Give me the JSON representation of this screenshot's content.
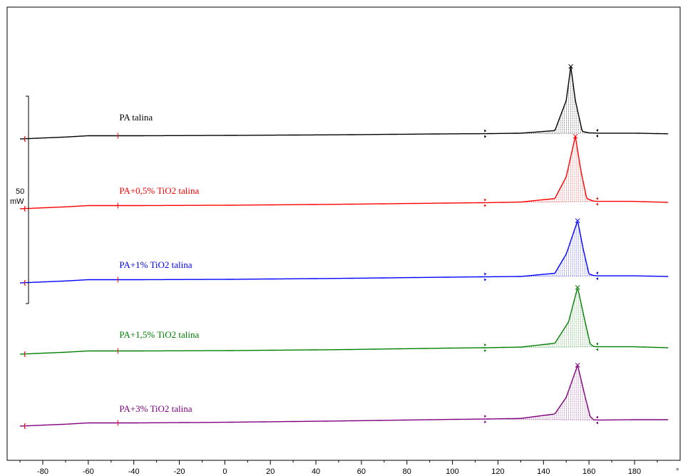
{
  "chart_data": {
    "type": "line",
    "title": "",
    "xlabel": "",
    "ylabel": "",
    "x_unit": "°",
    "xlim": [
      -90,
      195
    ],
    "x_ticks": [
      -80,
      -60,
      -40,
      -20,
      0,
      20,
      40,
      60,
      80,
      100,
      120,
      140,
      160,
      180
    ],
    "scale_bar": {
      "value": "50",
      "unit": "mW"
    },
    "integration_limits": [
      114,
      164
    ],
    "grid": false,
    "legend": "inline labels",
    "series": [
      {
        "name": "PA talina",
        "color": "#000000",
        "peak_x": 152,
        "points": [
          [
            -90,
            0
          ],
          [
            -70,
            3
          ],
          [
            -60,
            5
          ],
          [
            -47,
            5
          ],
          [
            -40,
            5
          ],
          [
            0,
            5.5
          ],
          [
            50,
            6.5
          ],
          [
            100,
            8
          ],
          [
            114,
            8.2
          ],
          [
            130,
            9
          ],
          [
            145,
            13
          ],
          [
            150,
            60
          ],
          [
            152,
            113
          ],
          [
            154,
            60
          ],
          [
            157,
            12
          ],
          [
            160,
            9.5
          ],
          [
            164,
            9
          ],
          [
            180,
            9
          ],
          [
            195,
            8
          ]
        ]
      },
      {
        "name": "PA+0,5% TiO2 talina",
        "color": "#ff0000",
        "peak_x": 154,
        "points": [
          [
            -90,
            0
          ],
          [
            -70,
            3
          ],
          [
            -60,
            5
          ],
          [
            -47,
            5
          ],
          [
            -40,
            5
          ],
          [
            0,
            5.5
          ],
          [
            50,
            7
          ],
          [
            100,
            9
          ],
          [
            114,
            9.5
          ],
          [
            130,
            10.5
          ],
          [
            145,
            16
          ],
          [
            150,
            50
          ],
          [
            154,
            113
          ],
          [
            156.5,
            58
          ],
          [
            159,
            16
          ],
          [
            162,
            12
          ],
          [
            164,
            11.5
          ],
          [
            180,
            11.5
          ],
          [
            195,
            10
          ]
        ]
      },
      {
        "name": "PA+1% TiO2 talina",
        "color": "#0000ff",
        "peak_x": 155,
        "points": [
          [
            -90,
            0
          ],
          [
            -70,
            3
          ],
          [
            -60,
            5
          ],
          [
            -47,
            5
          ],
          [
            -40,
            5
          ],
          [
            0,
            5.5
          ],
          [
            50,
            7
          ],
          [
            100,
            9
          ],
          [
            114,
            9.5
          ],
          [
            130,
            10
          ],
          [
            145,
            15
          ],
          [
            150,
            45
          ],
          [
            155,
            97
          ],
          [
            157.5,
            52
          ],
          [
            160,
            14
          ],
          [
            162,
            11.5
          ],
          [
            164,
            11
          ],
          [
            180,
            11
          ],
          [
            195,
            10
          ]
        ]
      },
      {
        "name": "PA+1,5% TiO2 talina",
        "color": "#008000",
        "peak_x": 155,
        "points": [
          [
            -90,
            0
          ],
          [
            -70,
            3
          ],
          [
            -60,
            5
          ],
          [
            -47,
            5
          ],
          [
            -40,
            5
          ],
          [
            0,
            5.5
          ],
          [
            50,
            7
          ],
          [
            100,
            9.5
          ],
          [
            114,
            10
          ],
          [
            130,
            11
          ],
          [
            145,
            17
          ],
          [
            151,
            50
          ],
          [
            155,
            104
          ],
          [
            158,
            55
          ],
          [
            160.5,
            16
          ],
          [
            162,
            12
          ],
          [
            164,
            11.5
          ],
          [
            180,
            11.5
          ],
          [
            195,
            10
          ]
        ]
      },
      {
        "name": "PA+3% TiO2 talina",
        "color": "#800080",
        "peak_x": 155,
        "points": [
          [
            -90,
            0
          ],
          [
            -70,
            3
          ],
          [
            -60,
            5
          ],
          [
            -47,
            5
          ],
          [
            -40,
            5
          ],
          [
            0,
            6
          ],
          [
            50,
            8
          ],
          [
            100,
            10.5
          ],
          [
            114,
            11
          ],
          [
            130,
            12
          ],
          [
            145,
            19
          ],
          [
            150,
            45
          ],
          [
            155,
            95
          ],
          [
            158,
            50
          ],
          [
            160.5,
            15
          ],
          [
            162,
            10
          ],
          [
            164,
            9.5
          ],
          [
            180,
            10
          ],
          [
            195,
            10
          ]
        ]
      }
    ]
  }
}
